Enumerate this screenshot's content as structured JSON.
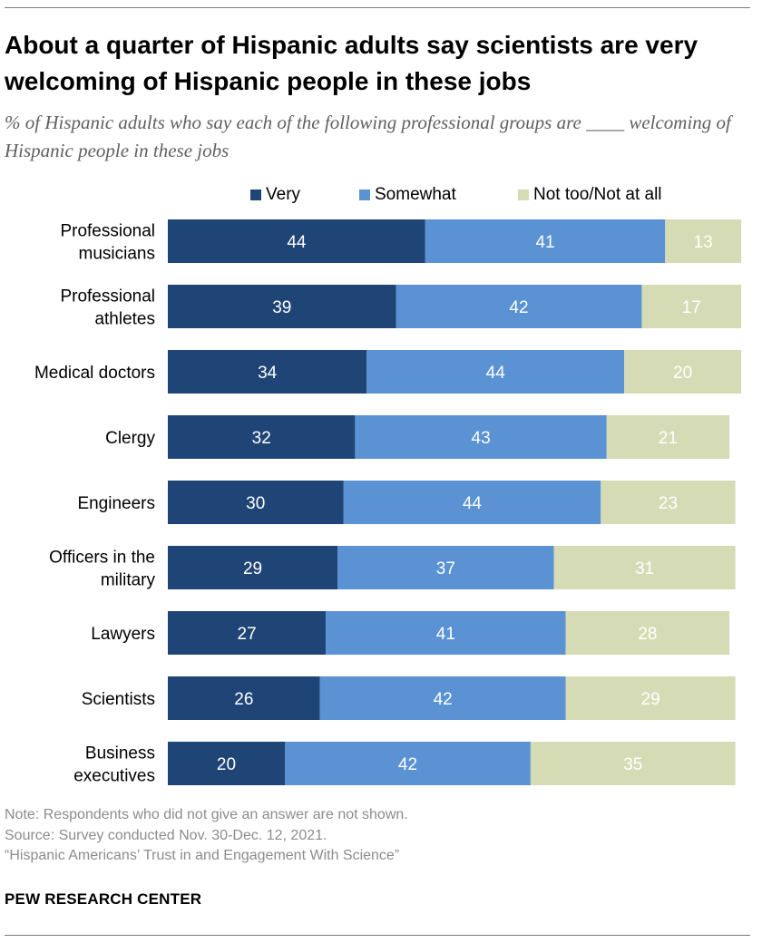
{
  "title": "About a quarter of Hispanic adults say scientists are very welcoming of Hispanic people in these jobs",
  "subtitle": "% of Hispanic adults who say each of the following professional groups are ____ welcoming of Hispanic people in these jobs",
  "colors": {
    "very": "#1f4476",
    "somewhat": "#5a92d4",
    "not_too": "#d5dcb5",
    "label_dark_text": "#ffffff",
    "label_light_text": "#ffffff"
  },
  "chart_data": {
    "type": "bar",
    "orientation": "horizontal",
    "stacked": true,
    "title": "About a quarter of Hispanic adults say scientists are very welcoming of Hispanic people in these jobs",
    "subtitle": "% of Hispanic adults who say each of the following professional groups are ____ welcoming of Hispanic people in these jobs",
    "xlim": [
      0,
      100
    ],
    "grid": false,
    "legend_position": "top",
    "categories": [
      "Professional musicians",
      "Professional athletes",
      "Medical doctors",
      "Clergy",
      "Engineers",
      "Officers in the military",
      "Lawyers",
      "Scientists",
      "Business executives"
    ],
    "category_lines": [
      [
        "Professional",
        "musicians"
      ],
      [
        "Professional",
        "athletes"
      ],
      [
        "Medical doctors"
      ],
      [
        "Clergy"
      ],
      [
        "Engineers"
      ],
      [
        "Officers in the",
        "military"
      ],
      [
        "Lawyers"
      ],
      [
        "Scientists"
      ],
      [
        "Business",
        "executives"
      ]
    ],
    "series": [
      {
        "name": "Very",
        "color": "#1f4476",
        "values": [
          44,
          39,
          34,
          32,
          30,
          29,
          27,
          26,
          20
        ]
      },
      {
        "name": "Somewhat",
        "color": "#5a92d4",
        "values": [
          41,
          42,
          44,
          43,
          44,
          37,
          41,
          42,
          42
        ]
      },
      {
        "name": "Not too/Not at all",
        "color": "#d5dcb5",
        "values": [
          13,
          17,
          20,
          21,
          23,
          31,
          28,
          29,
          35
        ]
      }
    ]
  },
  "notes": [
    "Note: Respondents who did not give an answer are not shown.",
    "Source: Survey conducted Nov. 30-Dec. 12, 2021.",
    "“Hispanic Americans’ Trust in and Engagement With Science”"
  ],
  "brand": "PEW RESEARCH CENTER"
}
